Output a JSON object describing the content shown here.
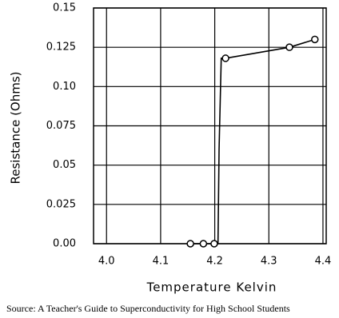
{
  "chart_data": {
    "type": "line",
    "x_label": "Temperature Kelvin",
    "y_label": "Resistance (Ohms)",
    "source": "Source: A Teacher's Guide to Superconductivity for High School Students",
    "x": [
      4.155,
      4.179,
      4.199,
      4.206,
      4.208,
      4.212,
      4.22,
      4.338,
      4.385
    ],
    "values": [
      0,
      0,
      0,
      0,
      0.06,
      0.118,
      0.118,
      0.125,
      0.13
    ],
    "markers": [
      true,
      true,
      true,
      false,
      false,
      false,
      true,
      true,
      true
    ],
    "color": "#000000",
    "xlim": [
      3.976,
      4.406
    ],
    "xticks": [
      {
        "value": 4,
        "label": "4.0"
      },
      4.1,
      4.2,
      4.3,
      4.4
    ],
    "ylim": [
      0,
      0.15
    ],
    "yticks": [
      {
        "value": 0,
        "label": "0.00"
      },
      0.025,
      0.05,
      0.075,
      {
        "value": 0.1,
        "label": "0.10"
      },
      0.125,
      0.15
    ],
    "grid": true
  }
}
